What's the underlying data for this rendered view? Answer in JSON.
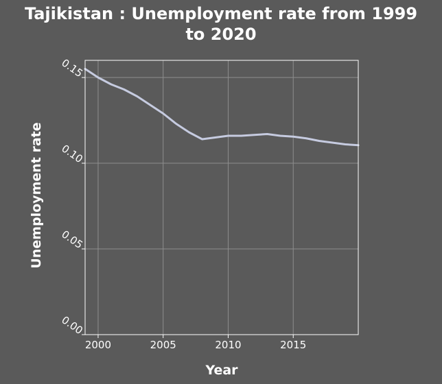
{
  "chart_data": {
    "type": "line",
    "title_lines": [
      "Tajikistan : Unemployment rate from 1999",
      "to 2020"
    ],
    "xlabel": "Year",
    "ylabel": "Unemployment rate",
    "xlim": [
      1999,
      2020
    ],
    "ylim": [
      0,
      0.16
    ],
    "x_ticks": [
      2000,
      2005,
      2010,
      2015
    ],
    "x_tick_labels": [
      "2000",
      "2005",
      "2010",
      "2015"
    ],
    "y_ticks": [
      0,
      0.05,
      0.1,
      0.15
    ],
    "y_tick_labels": [
      "0.00",
      "0.05",
      "0.10",
      "0.15"
    ],
    "grid": true,
    "legend": "none",
    "line_color": "#c6cbe0",
    "background_color": "#5a5a5a",
    "series": [
      {
        "x": [
          1999,
          2000,
          2001,
          2002,
          2003,
          2004,
          2005,
          2006,
          2007,
          2008,
          2009,
          2010,
          2011,
          2012,
          2013,
          2014,
          2015,
          2016,
          2017,
          2018,
          2019,
          2020
        ],
        "values": [
          0.155,
          0.15,
          0.146,
          0.143,
          0.139,
          0.134,
          0.129,
          0.123,
          0.118,
          0.114,
          0.115,
          0.116,
          0.116,
          0.1165,
          0.117,
          0.116,
          0.1155,
          0.1145,
          0.113,
          0.112,
          0.111,
          0.1105
        ]
      }
    ]
  }
}
